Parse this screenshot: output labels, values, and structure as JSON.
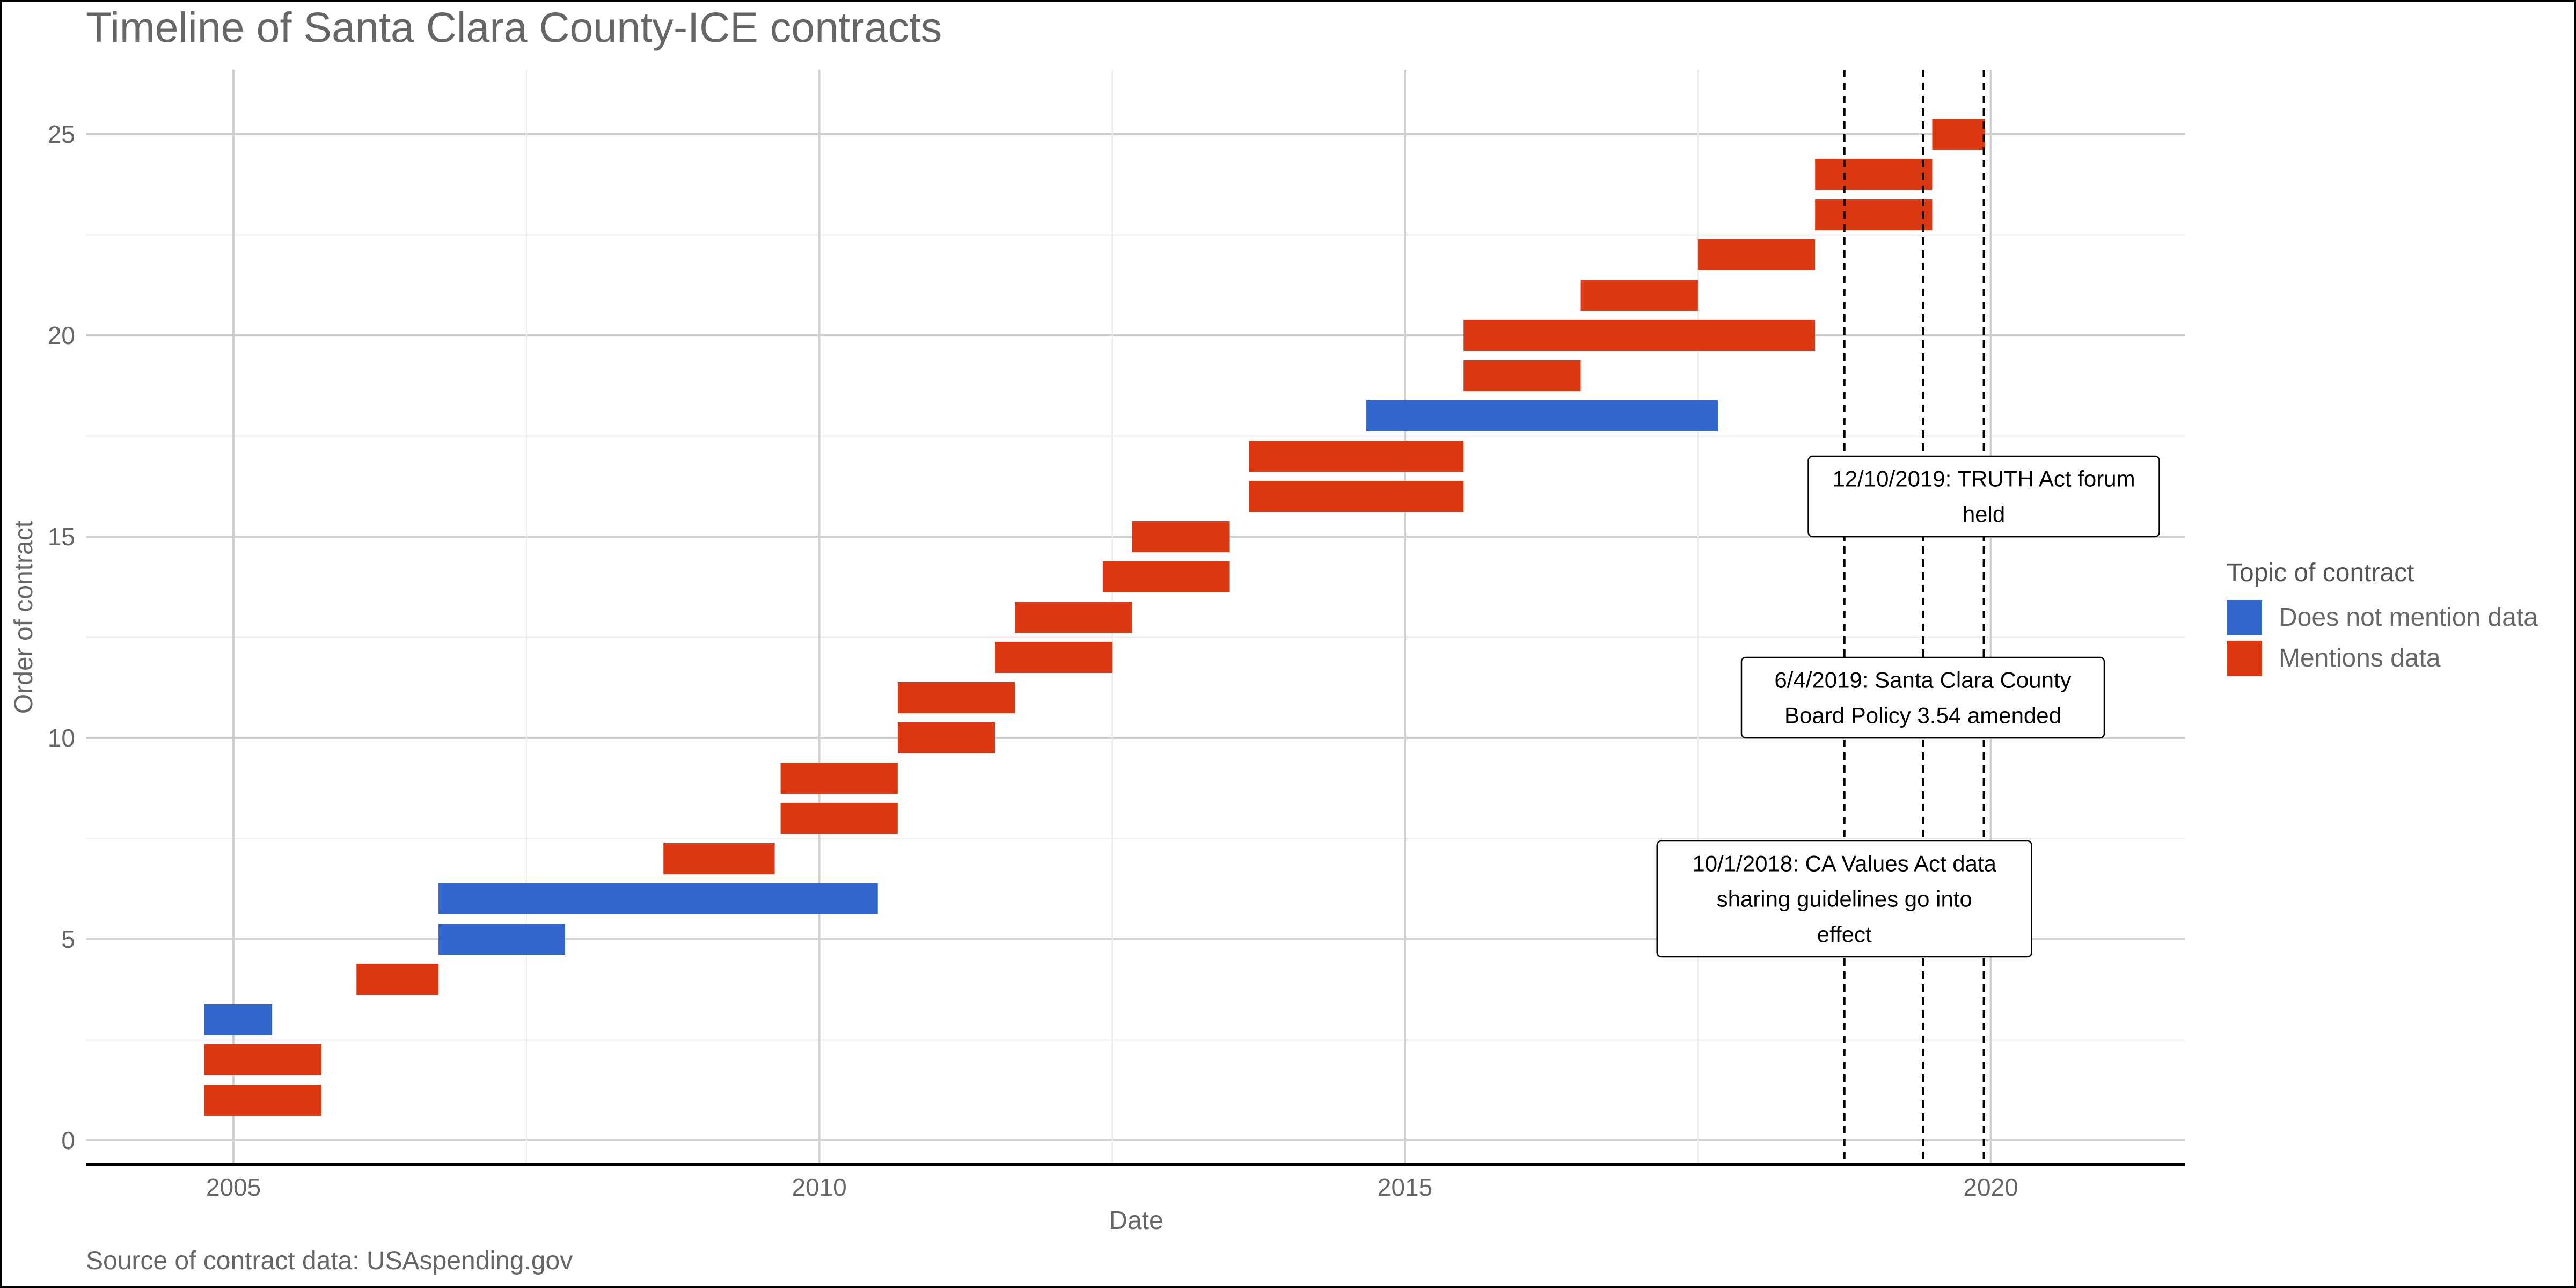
{
  "chart_data": {
    "type": "timeline",
    "title": "Timeline of Santa Clara County-ICE contracts",
    "xlabel": "Date",
    "ylabel": "Order of contract",
    "caption": "Source of contract data: USAspending.gov",
    "xlim": [
      2003.74,
      2021.66
    ],
    "ylim": [
      -0.6,
      26.6
    ],
    "xticks": [
      2005,
      2010,
      2015,
      2020
    ],
    "yticks": [
      0,
      5,
      10,
      15,
      20,
      25
    ],
    "grid": true,
    "legend": {
      "title": "Topic of contract",
      "position": "right",
      "items": [
        {
          "key": "no_data",
          "label": "Does not mention data",
          "color": "#3366CC"
        },
        {
          "key": "data",
          "label": "Mentions data",
          "color": "#DC3912"
        }
      ]
    },
    "contracts": [
      {
        "order": 1,
        "start": 2004.75,
        "end": 2005.75,
        "topic": "data"
      },
      {
        "order": 2,
        "start": 2004.75,
        "end": 2005.75,
        "topic": "data"
      },
      {
        "order": 3,
        "start": 2004.75,
        "end": 2005.33,
        "topic": "no_data"
      },
      {
        "order": 4,
        "start": 2006.05,
        "end": 2006.75,
        "topic": "data"
      },
      {
        "order": 5,
        "start": 2006.75,
        "end": 2007.83,
        "topic": "no_data"
      },
      {
        "order": 6,
        "start": 2006.75,
        "end": 2010.5,
        "topic": "no_data"
      },
      {
        "order": 7,
        "start": 2008.67,
        "end": 2009.62,
        "topic": "data"
      },
      {
        "order": 8,
        "start": 2009.67,
        "end": 2010.67,
        "topic": "data"
      },
      {
        "order": 9,
        "start": 2009.67,
        "end": 2010.67,
        "topic": "data"
      },
      {
        "order": 10,
        "start": 2010.67,
        "end": 2011.5,
        "topic": "data"
      },
      {
        "order": 11,
        "start": 2010.67,
        "end": 2011.67,
        "topic": "data"
      },
      {
        "order": 12,
        "start": 2011.5,
        "end": 2012.5,
        "topic": "data"
      },
      {
        "order": 13,
        "start": 2011.67,
        "end": 2012.67,
        "topic": "data"
      },
      {
        "order": 14,
        "start": 2012.42,
        "end": 2013.5,
        "topic": "data"
      },
      {
        "order": 15,
        "start": 2012.67,
        "end": 2013.5,
        "topic": "data"
      },
      {
        "order": 16,
        "start": 2013.67,
        "end": 2015.5,
        "topic": "data"
      },
      {
        "order": 17,
        "start": 2013.67,
        "end": 2015.5,
        "topic": "data"
      },
      {
        "order": 18,
        "start": 2014.67,
        "end": 2017.67,
        "topic": "no_data"
      },
      {
        "order": 19,
        "start": 2015.5,
        "end": 2016.5,
        "topic": "data"
      },
      {
        "order": 20,
        "start": 2015.5,
        "end": 2018.5,
        "topic": "data"
      },
      {
        "order": 21,
        "start": 2016.5,
        "end": 2017.5,
        "topic": "data"
      },
      {
        "order": 22,
        "start": 2017.5,
        "end": 2018.5,
        "topic": "data"
      },
      {
        "order": 23,
        "start": 2018.5,
        "end": 2019.5,
        "topic": "data"
      },
      {
        "order": 24,
        "start": 2018.5,
        "end": 2019.5,
        "topic": "data"
      },
      {
        "order": 25,
        "start": 2019.5,
        "end": 2019.95,
        "topic": "data"
      }
    ],
    "events": [
      {
        "date": 2018.75,
        "text": "10/1/2018: CA Values Act data sharing guidelines go into effect",
        "label_lines": [
          "10/1/2018: CA Values Act data",
          "sharing guidelines go into",
          "effect"
        ],
        "label_y": 6
      },
      {
        "date": 2019.42,
        "text": "6/4/2019: Santa Clara County Board Policy 3.54 amended",
        "label_lines": [
          "6/4/2019: Santa Clara County",
          "Board Policy 3.54 amended"
        ],
        "label_y": 11
      },
      {
        "date": 2019.94,
        "text": "12/10/2019: TRUTH Act forum held",
        "label_lines": [
          "12/10/2019: TRUTH Act forum",
          "held"
        ],
        "label_y": 16
      }
    ]
  }
}
